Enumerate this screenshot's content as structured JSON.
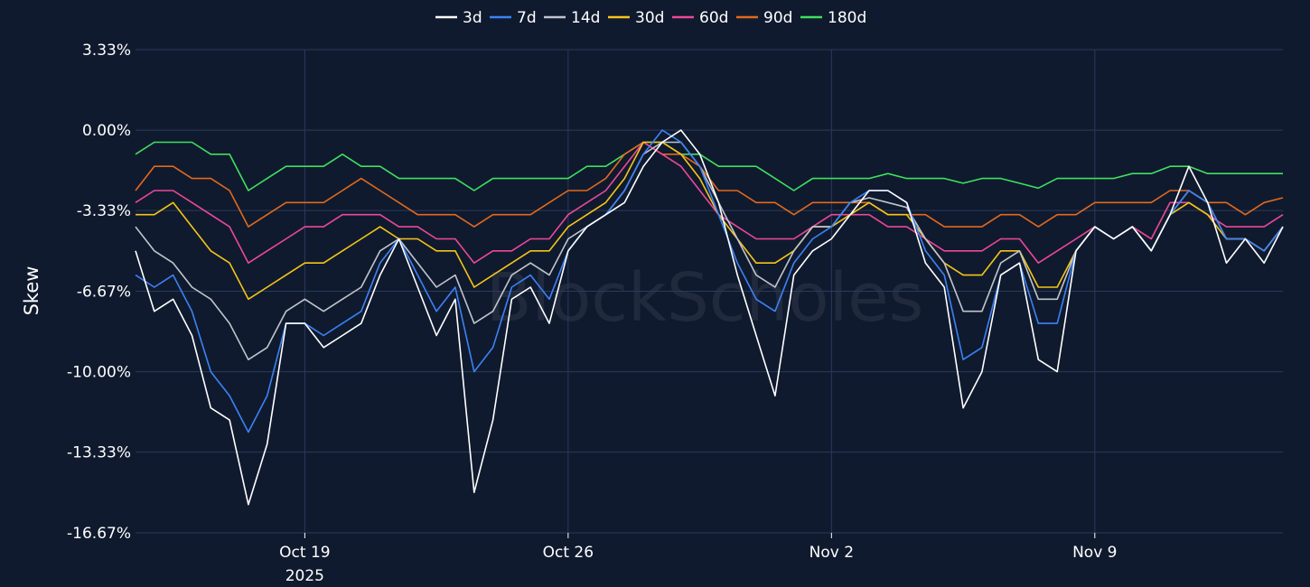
{
  "watermark": "BlockScholes",
  "chart_data": {
    "type": "line",
    "title": "",
    "xlabel": "",
    "ylabel": "Skew",
    "x_range": [
      "2025-10-14T12:00",
      "2025-11-14T00:00"
    ],
    "ylim": [
      -16.67,
      3.33
    ],
    "y_ticks": [
      {
        "value": 3.33,
        "label": "3.33%"
      },
      {
        "value": 0,
        "label": "0.00%"
      },
      {
        "value": -3.33,
        "label": "-3.33%"
      },
      {
        "value": -6.67,
        "label": "-6.67%"
      },
      {
        "value": -10,
        "label": "-10.00%"
      },
      {
        "value": -13.33,
        "label": "-13.33%"
      },
      {
        "value": -16.67,
        "label": "-16.67%"
      }
    ],
    "x_ticks": [
      {
        "date": "2025-10-19",
        "label": "Oct 19",
        "sublabel": "2025"
      },
      {
        "date": "2025-10-26",
        "label": "Oct 26",
        "sublabel": ""
      },
      {
        "date": "2025-11-02",
        "label": "Nov 2",
        "sublabel": ""
      },
      {
        "date": "2025-11-09",
        "label": "Nov 9",
        "sublabel": ""
      }
    ],
    "grid": true,
    "legend_position": "top-center",
    "x": [
      "2025-10-14T12:00",
      "2025-10-15T00:00",
      "2025-10-15T12:00",
      "2025-10-16T00:00",
      "2025-10-16T12:00",
      "2025-10-17T00:00",
      "2025-10-17T12:00",
      "2025-10-18T00:00",
      "2025-10-18T12:00",
      "2025-10-19T00:00",
      "2025-10-19T12:00",
      "2025-10-20T00:00",
      "2025-10-20T12:00",
      "2025-10-21T00:00",
      "2025-10-21T12:00",
      "2025-10-22T00:00",
      "2025-10-22T12:00",
      "2025-10-23T00:00",
      "2025-10-23T12:00",
      "2025-10-24T00:00",
      "2025-10-24T12:00",
      "2025-10-25T00:00",
      "2025-10-25T12:00",
      "2025-10-26T00:00",
      "2025-10-26T12:00",
      "2025-10-27T00:00",
      "2025-10-27T12:00",
      "2025-10-28T00:00",
      "2025-10-28T12:00",
      "2025-10-29T00:00",
      "2025-10-29T12:00",
      "2025-10-30T00:00",
      "2025-10-30T12:00",
      "2025-10-31T00:00",
      "2025-10-31T12:00",
      "2025-11-01T00:00",
      "2025-11-01T12:00",
      "2025-11-02T00:00",
      "2025-11-02T12:00",
      "2025-11-03T00:00",
      "2025-11-03T12:00",
      "2025-11-04T00:00",
      "2025-11-04T12:00",
      "2025-11-05T00:00",
      "2025-11-05T12:00",
      "2025-11-06T00:00",
      "2025-11-06T12:00",
      "2025-11-07T00:00",
      "2025-11-07T12:00",
      "2025-11-08T00:00",
      "2025-11-08T12:00",
      "2025-11-09T00:00",
      "2025-11-09T12:00",
      "2025-11-10T00:00",
      "2025-11-10T12:00",
      "2025-11-11T00:00",
      "2025-11-11T12:00",
      "2025-11-12T00:00",
      "2025-11-12T12:00",
      "2025-11-13T00:00",
      "2025-11-13T12:00",
      "2025-11-14T00:00"
    ],
    "series": [
      {
        "name": "3d",
        "color": "#ffffff",
        "values": [
          -5.0,
          -7.5,
          -7.0,
          -8.5,
          -11.5,
          -12.0,
          -15.5,
          -13.0,
          -8.0,
          -8.0,
          -9.0,
          -8.5,
          -8.0,
          -6.0,
          -4.5,
          -6.5,
          -8.5,
          -7.0,
          -15.0,
          -12.0,
          -7.0,
          -6.5,
          -8.0,
          -5.0,
          -4.0,
          -3.5,
          -3.0,
          -1.5,
          -0.5,
          0.0,
          -1.0,
          -3.0,
          -6.0,
          -8.5,
          -11.0,
          -6.0,
          -5.0,
          -4.5,
          -3.5,
          -2.5,
          -2.5,
          -3.0,
          -5.5,
          -6.5,
          -11.5,
          -10.0,
          -6.0,
          -5.5,
          -9.5,
          -10.0,
          -5.0,
          -4.0,
          -4.5,
          -4.0,
          -5.0,
          -3.5,
          -1.5,
          -3.0,
          -5.5,
          -4.5,
          -5.5,
          -4.0
        ]
      },
      {
        "name": "7d",
        "color": "#3b82f6",
        "values": [
          -6.0,
          -6.5,
          -6.0,
          -7.5,
          -10.0,
          -11.0,
          -12.5,
          -11.0,
          -8.0,
          -8.0,
          -8.5,
          -8.0,
          -7.5,
          -5.5,
          -4.5,
          -6.0,
          -7.5,
          -6.5,
          -10.0,
          -9.0,
          -6.5,
          -6.0,
          -7.0,
          -5.0,
          -4.0,
          -3.5,
          -2.5,
          -1.0,
          0.0,
          -0.5,
          -1.5,
          -3.5,
          -5.5,
          -7.0,
          -7.5,
          -5.5,
          -4.5,
          -4.0,
          -3.0,
          -2.5,
          -2.5,
          -3.0,
          -5.0,
          -6.0,
          -9.5,
          -9.0,
          -6.0,
          -5.5,
          -8.0,
          -8.0,
          -5.0,
          -4.0,
          -4.5,
          -4.0,
          -5.0,
          -3.5,
          -2.5,
          -3.0,
          -4.5,
          -4.5,
          -5.0,
          -4.0
        ]
      },
      {
        "name": "14d",
        "color": "#c0c4cc",
        "values": [
          -4.0,
          -5.0,
          -5.5,
          -6.5,
          -7.0,
          -8.0,
          -9.5,
          -9.0,
          -7.5,
          -7.0,
          -7.5,
          -7.0,
          -6.5,
          -5.0,
          -4.5,
          -5.5,
          -6.5,
          -6.0,
          -8.0,
          -7.5,
          -6.0,
          -5.5,
          -6.0,
          -4.5,
          -4.0,
          -3.5,
          -2.5,
          -1.0,
          -0.5,
          -0.5,
          -1.5,
          -3.0,
          -4.5,
          -6.0,
          -6.5,
          -5.0,
          -4.0,
          -4.0,
          -3.0,
          -2.8,
          -3.0,
          -3.2,
          -4.5,
          -5.5,
          -7.5,
          -7.5,
          -5.5,
          -5.0,
          -7.0,
          -7.0,
          -5.0,
          -4.0,
          -4.5,
          -4.0,
          -5.0,
          -3.5,
          -2.5,
          -3.0,
          -4.5,
          -4.5,
          -5.0,
          -4.0
        ]
      },
      {
        "name": "30d",
        "color": "#f5c518",
        "values": [
          -3.5,
          -3.5,
          -3.0,
          -4.0,
          -5.0,
          -5.5,
          -7.0,
          -6.5,
          -6.0,
          -5.5,
          -5.5,
          -5.0,
          -4.5,
          -4.0,
          -4.5,
          -4.5,
          -5.0,
          -5.0,
          -6.5,
          -6.0,
          -5.5,
          -5.0,
          -5.0,
          -4.0,
          -3.5,
          -3.0,
          -2.0,
          -0.5,
          -0.5,
          -1.0,
          -2.0,
          -3.5,
          -4.5,
          -5.5,
          -5.5,
          -5.0,
          -4.0,
          -4.0,
          -3.5,
          -3.0,
          -3.5,
          -3.5,
          -4.5,
          -5.5,
          -6.0,
          -6.0,
          -5.0,
          -5.0,
          -6.5,
          -6.5,
          -5.0,
          -4.0,
          -4.5,
          -4.0,
          -5.0,
          -3.5,
          -3.0,
          -3.5,
          -4.5,
          -4.5,
          -5.0,
          -4.0
        ]
      },
      {
        "name": "60d",
        "color": "#ec4899",
        "values": [
          -3.0,
          -2.5,
          -2.5,
          -3.0,
          -3.5,
          -4.0,
          -5.5,
          -5.0,
          -4.5,
          -4.0,
          -4.0,
          -3.5,
          -3.5,
          -3.5,
          -4.0,
          -4.0,
          -4.5,
          -4.5,
          -5.5,
          -5.0,
          -5.0,
          -4.5,
          -4.5,
          -3.5,
          -3.0,
          -2.5,
          -1.5,
          -0.5,
          -1.0,
          -1.5,
          -2.5,
          -3.5,
          -4.0,
          -4.5,
          -4.5,
          -4.5,
          -4.0,
          -3.5,
          -3.5,
          -3.5,
          -4.0,
          -4.0,
          -4.5,
          -5.0,
          -5.0,
          -5.0,
          -4.5,
          -4.5,
          -5.5,
          -5.0,
          -4.5,
          -4.0,
          -4.5,
          -4.0,
          -4.5,
          -3.0,
          -3.0,
          -3.5,
          -4.0,
          -4.0,
          -4.0,
          -3.5
        ]
      },
      {
        "name": "90d",
        "color": "#e2691d",
        "values": [
          -2.5,
          -1.5,
          -1.5,
          -2.0,
          -2.0,
          -2.5,
          -4.0,
          -3.5,
          -3.0,
          -3.0,
          -3.0,
          -2.5,
          -2.0,
          -2.5,
          -3.0,
          -3.5,
          -3.5,
          -3.5,
          -4.0,
          -3.5,
          -3.5,
          -3.5,
          -3.0,
          -2.5,
          -2.5,
          -2.0,
          -1.0,
          -0.5,
          -1.0,
          -1.0,
          -1.5,
          -2.5,
          -2.5,
          -3.0,
          -3.0,
          -3.5,
          -3.0,
          -3.0,
          -3.0,
          -3.0,
          -3.5,
          -3.5,
          -3.5,
          -4.0,
          -4.0,
          -4.0,
          -3.5,
          -3.5,
          -4.0,
          -3.5,
          -3.5,
          -3.0,
          -3.0,
          -3.0,
          -3.0,
          -2.5,
          -2.5,
          -3.0,
          -3.0,
          -3.5,
          -3.0,
          -2.8
        ]
      },
      {
        "name": "180d",
        "color": "#3fe05f",
        "values": [
          -1.0,
          -0.5,
          -0.5,
          -0.5,
          -1.0,
          -1.0,
          -2.5,
          -2.0,
          -1.5,
          -1.5,
          -1.5,
          -1.0,
          -1.5,
          -1.5,
          -2.0,
          -2.0,
          -2.0,
          -2.0,
          -2.5,
          -2.0,
          -2.0,
          -2.0,
          -2.0,
          -2.0,
          -1.5,
          -1.5,
          -1.0,
          -0.5,
          -0.5,
          -1.0,
          -1.0,
          -1.5,
          -1.5,
          -1.5,
          -2.0,
          -2.5,
          -2.0,
          -2.0,
          -2.0,
          -2.0,
          -1.8,
          -2.0,
          -2.0,
          -2.0,
          -2.2,
          -2.0,
          -2.0,
          -2.2,
          -2.4,
          -2.0,
          -2.0,
          -2.0,
          -2.0,
          -1.8,
          -1.8,
          -1.5,
          -1.5,
          -1.8,
          -1.8,
          -1.8,
          -1.8,
          -1.8
        ]
      }
    ]
  }
}
